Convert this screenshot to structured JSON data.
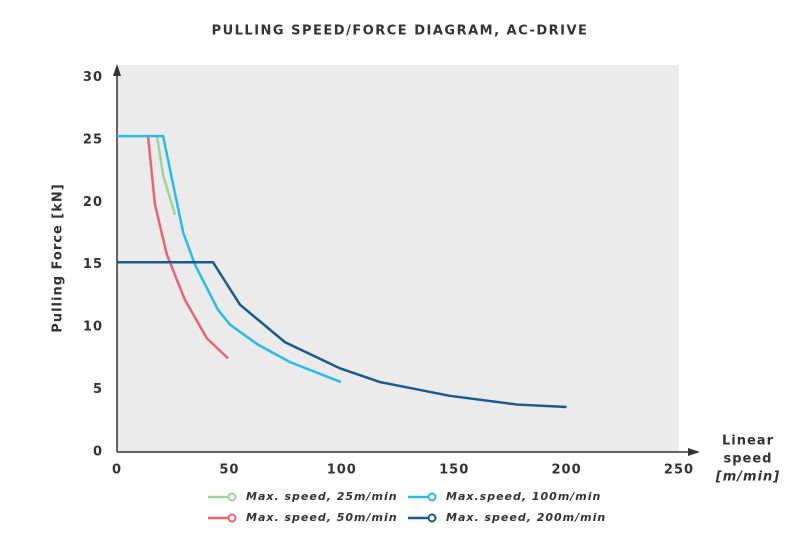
{
  "chart_data": {
    "type": "line",
    "title": "PULLING SPEED/FORCE DIAGRAM, AC-DRIVE",
    "ylabel": "Pulling Force [kN]",
    "xlabel": [
      "Linear",
      "speed",
      "[m/min]"
    ],
    "xlim": [
      0,
      250
    ],
    "xticks": [
      0,
      50,
      100,
      150,
      200,
      250
    ],
    "ylim": [
      0,
      31
    ],
    "yticks": [
      0,
      5,
      10,
      15,
      20,
      25,
      30
    ],
    "series": [
      {
        "name": "Max. speed, 25m/min",
        "color": "#9fd39a",
        "x": [
          17.8,
          20.5,
          25.8
        ],
        "values": [
          25.3,
          22.2,
          19.0
        ]
      },
      {
        "name": "Max. speed, 50m/min",
        "color": "#e8646f",
        "x": [
          13.8,
          16.9,
          22.2,
          30.2,
          40,
          49.4
        ],
        "values": [
          25.3,
          19.8,
          15.8,
          12.2,
          9.1,
          7.5
        ]
      },
      {
        "name": "Max.speed, 100m/min",
        "color": "#2bbbe8",
        "x": [
          0,
          20.5,
          29.4,
          34.7,
          44.9,
          50.3,
          62.7,
          77,
          99.6
        ],
        "values": [
          25.3,
          25.3,
          17.6,
          15,
          11.4,
          10.2,
          8.6,
          7.2,
          5.6
        ]
      },
      {
        "name": "Max. speed, 200m/min",
        "color": "#1b5a8c",
        "x": [
          0,
          42.7,
          54.7,
          74.7,
          99.2,
          117,
          148,
          178,
          200
        ],
        "values": [
          15.2,
          15.2,
          11.8,
          8.8,
          6.7,
          5.6,
          4.5,
          3.8,
          3.6
        ]
      }
    ]
  }
}
